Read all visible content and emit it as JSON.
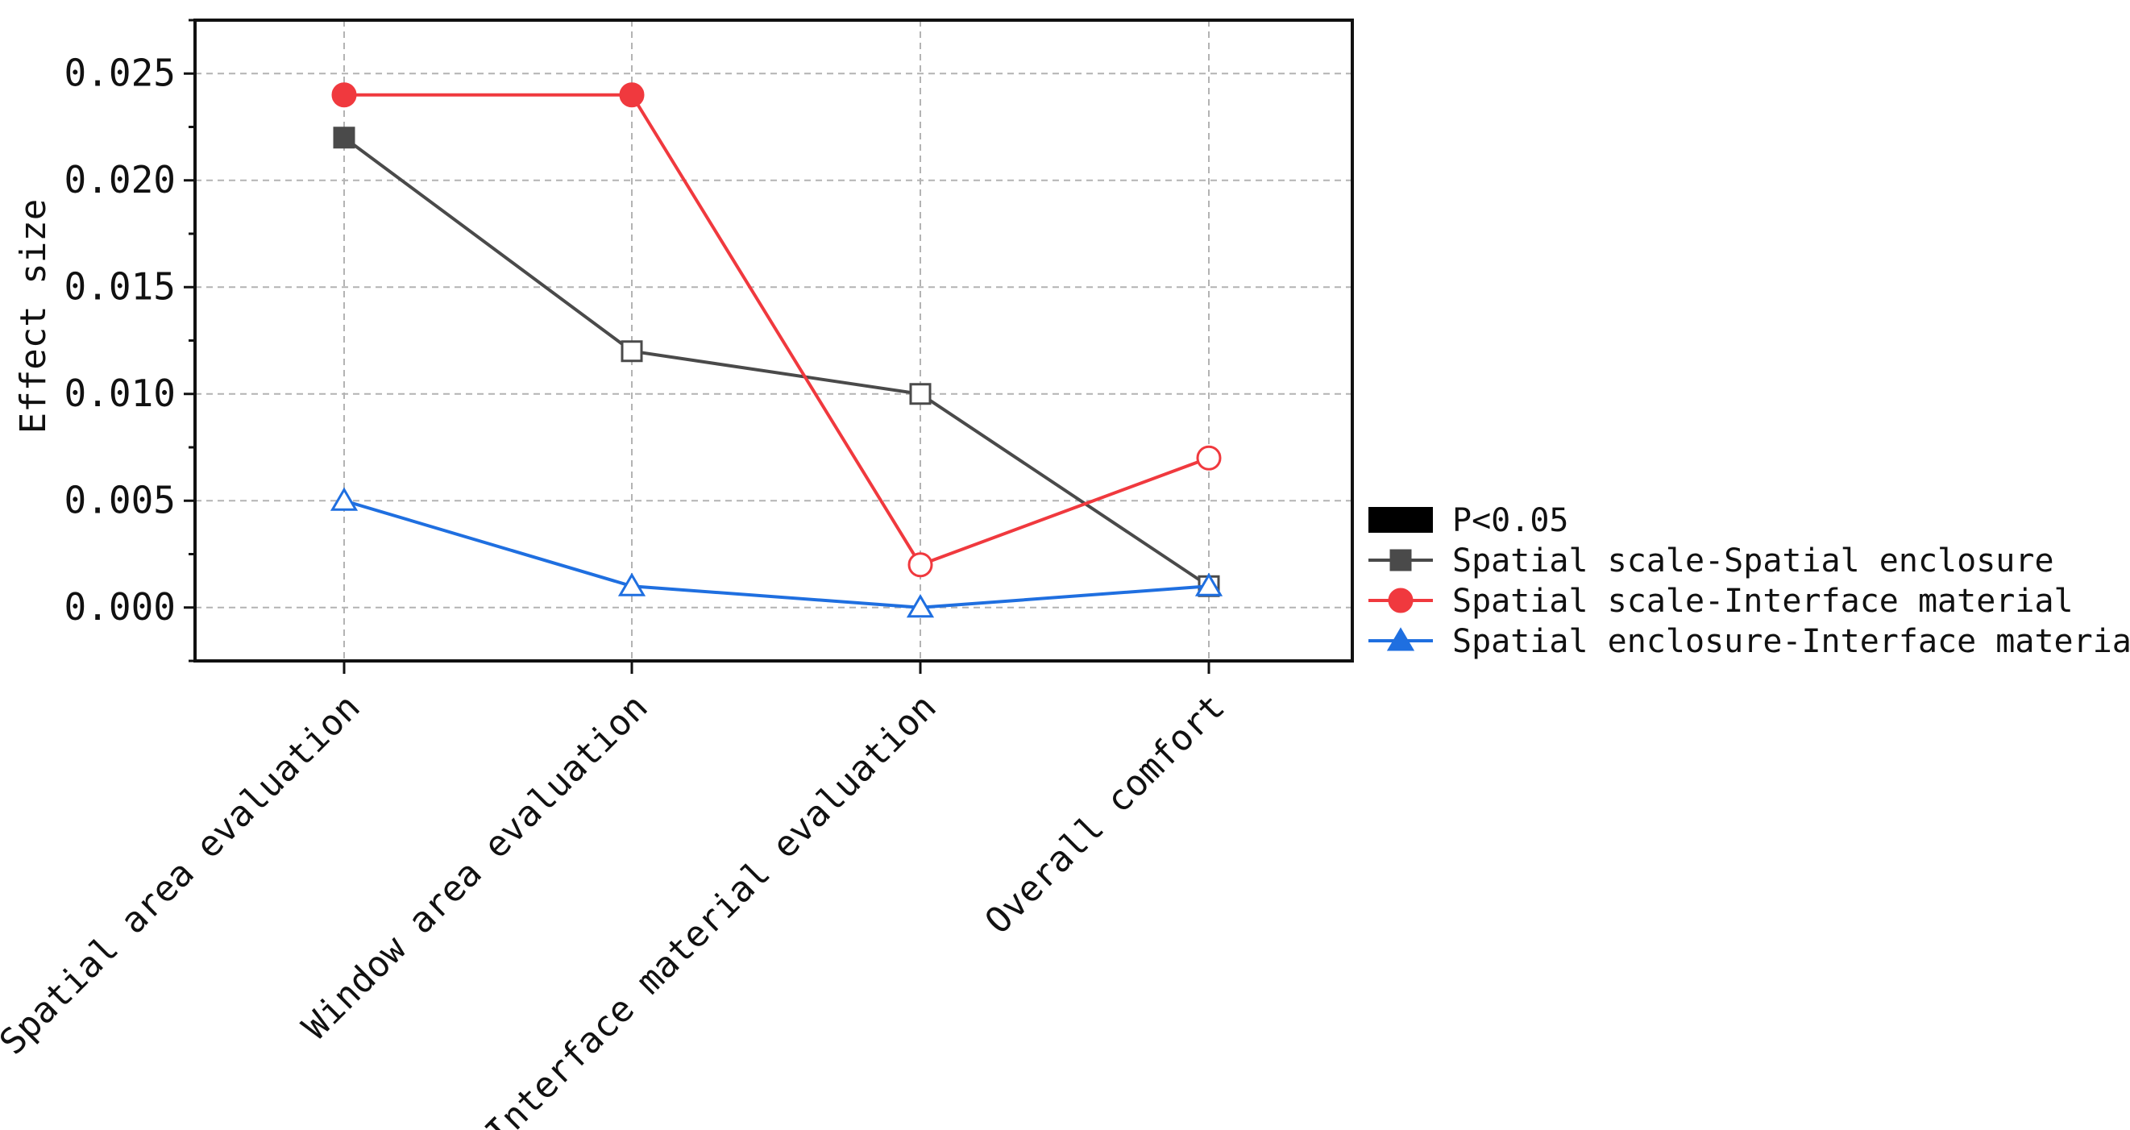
{
  "chart_data": {
    "type": "line",
    "ylabel": "Effect size",
    "xlabel": "",
    "ylim": [
      -0.0025,
      0.0275
    ],
    "yticks": [
      0.0,
      0.005,
      0.01,
      0.015,
      0.02,
      0.025
    ],
    "ytick_labels": [
      "0.000",
      "0.005",
      "0.010",
      "0.015",
      "0.020",
      "0.025"
    ],
    "categories": [
      "Spatial area evaluation",
      "Window area evaluation",
      "Interface material evaluation",
      "Overall comfort"
    ],
    "grid": true,
    "legend_position": "right",
    "legend": {
      "significance_label": "P<0.05"
    },
    "series": [
      {
        "name": "Spatial scale-Spatial enclosure",
        "color": "#4a4a4a",
        "marker": "square",
        "values": [
          0.022,
          0.012,
          0.01,
          0.001
        ],
        "significant": [
          true,
          false,
          false,
          false
        ]
      },
      {
        "name": "Spatial scale-Interface material",
        "color": "#f0393e",
        "marker": "circle",
        "values": [
          0.024,
          0.024,
          0.002,
          0.007
        ],
        "significant": [
          true,
          true,
          false,
          false
        ]
      },
      {
        "name": "Spatial enclosure-Interface material",
        "color": "#1f6fe0",
        "marker": "triangle",
        "values": [
          0.005,
          0.001,
          0.0,
          0.001
        ],
        "significant": [
          false,
          false,
          false,
          false
        ]
      }
    ]
  }
}
